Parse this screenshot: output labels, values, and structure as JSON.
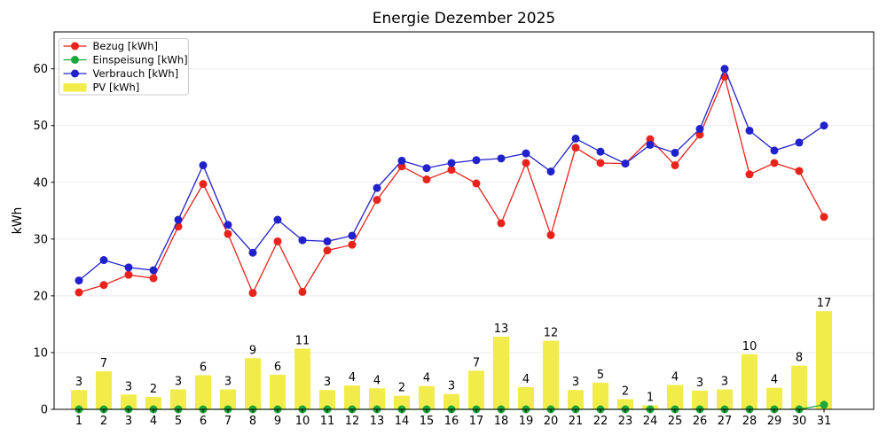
{
  "chart_data": {
    "type": "bar+line",
    "title": "Energie Dezember 2025",
    "ylabel": "kWh",
    "xlabel": "",
    "x": [
      1,
      2,
      3,
      4,
      5,
      6,
      7,
      8,
      9,
      10,
      11,
      12,
      13,
      14,
      15,
      16,
      17,
      18,
      19,
      20,
      21,
      22,
      23,
      24,
      25,
      26,
      27,
      28,
      29,
      30,
      31
    ],
    "ylim": [
      0,
      66.5
    ],
    "yticks": [
      0,
      10,
      20,
      30,
      40,
      50,
      60
    ],
    "grid": true,
    "grid_color": "#ebebeb",
    "legend_position": "upper-left",
    "background": "#ffffff",
    "spine_color": "#000000",
    "series": [
      {
        "key": "bezug",
        "name": "Bezug [kWh]",
        "type": "line",
        "color": "#e8231c",
        "values": [
          20.6,
          21.9,
          23.7,
          23.1,
          32.2,
          39.7,
          30.9,
          20.5,
          29.6,
          20.7,
          28.0,
          29.0,
          36.9,
          42.8,
          40.5,
          42.2,
          39.8,
          32.8,
          43.4,
          30.7,
          46.1,
          43.4,
          43.3,
          47.6,
          43.0,
          48.4,
          58.6,
          41.4,
          43.4,
          42.0,
          33.9
        ]
      },
      {
        "key": "einspeisung",
        "name": "Einspeisung [kWh]",
        "type": "line",
        "color": "#1aa739",
        "values": [
          0,
          0,
          0,
          0,
          0,
          0,
          0,
          0,
          0,
          0,
          0,
          0,
          0,
          0,
          0,
          0,
          0,
          0,
          0,
          0,
          0,
          0,
          0,
          0,
          0,
          0,
          0,
          0,
          0,
          0,
          0.8
        ]
      },
      {
        "key": "verbrauch",
        "name": "Verbrauch [kWh]",
        "type": "line",
        "color": "#2121cc",
        "values": [
          22.7,
          26.3,
          25.0,
          24.5,
          33.4,
          43.0,
          32.5,
          27.6,
          33.4,
          29.8,
          29.6,
          30.6,
          39.0,
          43.8,
          42.5,
          43.4,
          43.9,
          44.2,
          45.1,
          41.9,
          47.7,
          45.4,
          43.3,
          46.6,
          45.2,
          49.4,
          60.0,
          49.1,
          45.6,
          47.0,
          50.0
        ]
      },
      {
        "key": "pv",
        "name": "PV [kWh]",
        "type": "bar",
        "color": "#f1ec49",
        "values": [
          3.4,
          6.7,
          2.6,
          2.2,
          3.5,
          6.0,
          3.5,
          9.0,
          6.1,
          10.7,
          3.4,
          4.2,
          3.7,
          2.4,
          4.1,
          2.7,
          6.8,
          12.8,
          3.9,
          12.1,
          3.4,
          4.7,
          1.8,
          0.7,
          4.3,
          3.3,
          3.5,
          9.7,
          3.8,
          7.7,
          17.3
        ],
        "labels": [
          "3",
          "7",
          "3",
          "2",
          "3",
          "6",
          "3",
          "9",
          "6",
          "11",
          "3",
          "4",
          "4",
          "2",
          "4",
          "3",
          "7",
          "13",
          "4",
          "12",
          "3",
          "5",
          "2",
          "1",
          "4",
          "3",
          "3",
          "10",
          "4",
          "8",
          "17"
        ]
      }
    ]
  }
}
